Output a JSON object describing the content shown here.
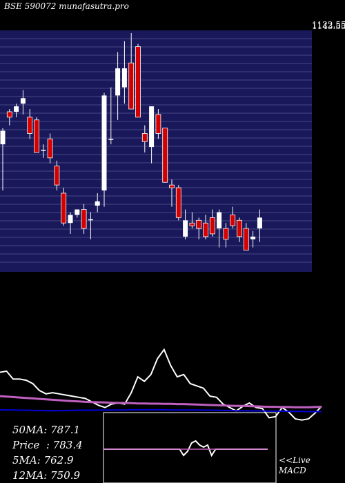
{
  "header": {
    "ticker": "BSE 590072",
    "site": "munafasutra.pro"
  },
  "price_axis": {
    "top_label": "1143.55",
    "overlap_label": "1122.55"
  },
  "stats": [
    {
      "label": "50MA",
      "value": "787.1"
    },
    {
      "label": "Price",
      "value": "783.4"
    },
    {
      "label": "5MA",
      "value": "762.9"
    },
    {
      "label": "12MA",
      "value": "750.9"
    }
  ],
  "macd_box": {
    "line1": "<<Live",
    "line2": "MACD"
  },
  "colors": {
    "panel_bg": "#18185a",
    "up": "#ffffff",
    "down": "#d40000",
    "ma_fast": "#ffffff",
    "ma_mid": "#c060c0",
    "ma_slow": "#0000dd"
  },
  "chart_data": [
    {
      "type": "candlestick",
      "ylim": [
        700,
        1145
      ],
      "candles": [
        {
          "o": 935,
          "h": 965,
          "l": 850,
          "c": 960
        },
        {
          "o": 995,
          "h": 1000,
          "l": 970,
          "c": 985
        },
        {
          "o": 995,
          "h": 1010,
          "l": 985,
          "c": 1005
        },
        {
          "o": 1010,
          "h": 1035,
          "l": 990,
          "c": 1020
        },
        {
          "o": 985,
          "h": 1000,
          "l": 945,
          "c": 955
        },
        {
          "o": 980,
          "h": 985,
          "l": 920,
          "c": 920
        },
        {
          "o": 925,
          "h": 935,
          "l": 910,
          "c": 925
        },
        {
          "o": 945,
          "h": 955,
          "l": 900,
          "c": 910
        },
        {
          "o": 895,
          "h": 905,
          "l": 850,
          "c": 860
        },
        {
          "o": 845,
          "h": 855,
          "l": 785,
          "c": 790
        },
        {
          "o": 790,
          "h": 810,
          "l": 770,
          "c": 805
        },
        {
          "o": 805,
          "h": 815,
          "l": 800,
          "c": 815
        },
        {
          "o": 815,
          "h": 825,
          "l": 770,
          "c": 780
        },
        {
          "o": 795,
          "h": 810,
          "l": 760,
          "c": 797
        },
        {
          "o": 822,
          "h": 845,
          "l": 810,
          "c": 830
        },
        {
          "o": 850,
          "h": 1030,
          "l": 820,
          "c": 1025
        },
        {
          "o": 945,
          "h": 1040,
          "l": 935,
          "c": 945
        },
        {
          "o": 1025,
          "h": 1105,
          "l": 980,
          "c": 1075
        },
        {
          "o": 1040,
          "h": 1125,
          "l": 1010,
          "c": 1075
        },
        {
          "o": 1085,
          "h": 1140,
          "l": 1000,
          "c": 1000
        },
        {
          "o": 1115,
          "h": 1120,
          "l": 985,
          "c": 985
        },
        {
          "o": 955,
          "h": 970,
          "l": 920,
          "c": 940
        },
        {
          "o": 930,
          "h": 1005,
          "l": 900,
          "c": 1005
        },
        {
          "o": 990,
          "h": 1000,
          "l": 945,
          "c": 955
        },
        {
          "o": 965,
          "h": 965,
          "l": 865,
          "c": 865
        },
        {
          "o": 860,
          "h": 870,
          "l": 820,
          "c": 855
        },
        {
          "o": 855,
          "h": 860,
          "l": 795,
          "c": 800
        },
        {
          "o": 765,
          "h": 815,
          "l": 760,
          "c": 795
        },
        {
          "o": 790,
          "h": 810,
          "l": 780,
          "c": 785
        },
        {
          "o": 795,
          "h": 800,
          "l": 760,
          "c": 780
        },
        {
          "o": 790,
          "h": 805,
          "l": 760,
          "c": 765
        },
        {
          "o": 800,
          "h": 815,
          "l": 765,
          "c": 770
        },
        {
          "o": 780,
          "h": 815,
          "l": 745,
          "c": 810
        },
        {
          "o": 780,
          "h": 790,
          "l": 745,
          "c": 760
        },
        {
          "o": 805,
          "h": 820,
          "l": 780,
          "c": 785
        },
        {
          "o": 795,
          "h": 800,
          "l": 755,
          "c": 765
        },
        {
          "o": 780,
          "h": 790,
          "l": 740,
          "c": 740
        },
        {
          "o": 760,
          "h": 775,
          "l": 745,
          "c": 765
        },
        {
          "o": 780,
          "h": 815,
          "l": 755,
          "c": 800
        }
      ]
    },
    {
      "type": "line",
      "series": [
        {
          "values": [
            1.6,
            1.65,
            1.3,
            1.3,
            1.25,
            1.1,
            0.8,
            0.65,
            0.7,
            0.65,
            0.6,
            0.55,
            0.5,
            0.45,
            0.3,
            0.15,
            0.05,
            0.2,
            0.25,
            0.2,
            0.7,
            1.4,
            1.2,
            1.5,
            2.2,
            2.6,
            1.9,
            1.4,
            1.5,
            1.1,
            1.0,
            0.9,
            0.55,
            0.5,
            0.2,
            0.05,
            -0.1,
            0.1,
            0.25,
            0.05,
            0.0,
            -0.4,
            -0.35,
            0.05,
            -0.15,
            -0.45,
            -0.5,
            -0.45,
            -0.2,
            0.1
          ]
        },
        {
          "values": [
            0.55,
            0.53,
            0.51,
            0.49,
            0.47,
            0.45,
            0.43,
            0.41,
            0.39,
            0.37,
            0.35,
            0.33,
            0.32,
            0.3,
            0.29,
            0.28,
            0.27,
            0.26,
            0.25,
            0.25,
            0.24,
            0.23,
            0.23,
            0.22,
            0.22,
            0.21,
            0.21,
            0.2,
            0.2,
            0.19,
            0.18,
            0.17,
            0.16,
            0.15,
            0.14,
            0.13,
            0.12,
            0.12,
            0.11,
            0.1,
            0.09,
            0.08,
            0.08,
            0.07,
            0.07,
            0.06,
            0.06,
            0.06,
            0.07,
            0.08
          ]
        },
        {
          "values": [
            -0.05,
            -0.06,
            -0.06,
            -0.07,
            -0.07,
            -0.08,
            -0.08,
            -0.09,
            -0.09,
            -0.09,
            -0.08,
            -0.08,
            -0.07,
            -0.07,
            -0.07,
            -0.07,
            -0.06,
            -0.06,
            -0.06,
            -0.06,
            -0.05,
            -0.05,
            -0.05,
            -0.05,
            -0.05,
            -0.05,
            -0.06,
            -0.06,
            -0.06,
            -0.06,
            -0.06,
            -0.07,
            -0.07,
            -0.07,
            -0.08,
            -0.08,
            -0.09,
            -0.09,
            -0.1,
            -0.1,
            -0.1,
            -0.11,
            -0.11,
            -0.11,
            -0.12,
            -0.12,
            -0.12,
            -0.13,
            -0.13,
            -0.13
          ]
        }
      ]
    },
    {
      "type": "line",
      "series": [
        {
          "values": [
            0,
            0,
            0,
            0,
            0,
            0,
            0,
            0,
            0,
            0,
            0,
            0,
            0,
            0,
            0,
            0,
            0,
            0,
            0,
            0,
            -0.15,
            -0.05,
            0.15,
            0.2,
            0.1,
            0.05,
            0.1,
            -0.15,
            0,
            0,
            0,
            0,
            0,
            0,
            0,
            0,
            0,
            0,
            0,
            0,
            0,
            0
          ]
        },
        {
          "values": [
            0,
            0,
            0,
            0,
            0,
            0,
            0,
            0,
            0,
            0,
            0,
            0,
            0,
            0,
            0,
            0,
            0,
            0,
            0,
            0,
            0,
            0,
            0,
            0,
            0,
            0,
            0,
            0,
            0,
            0,
            0,
            0,
            0,
            0,
            0,
            0,
            0,
            0,
            0,
            0,
            0,
            0
          ]
        }
      ]
    }
  ]
}
